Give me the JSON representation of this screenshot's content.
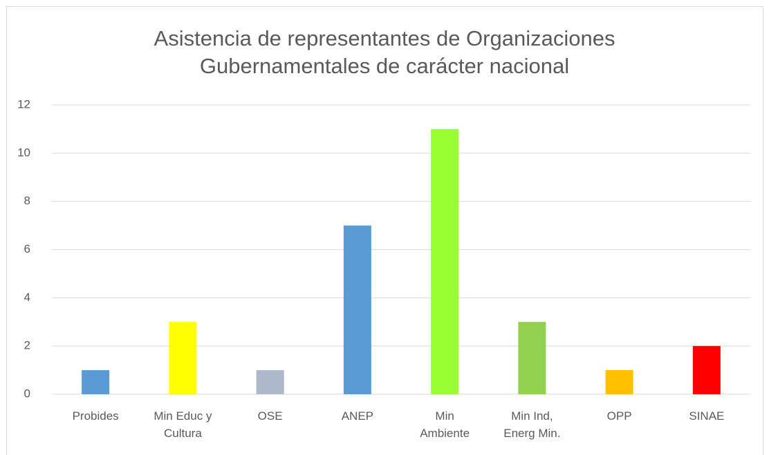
{
  "chart_data": {
    "type": "bar",
    "title": "Asistencia de representantes de Organizaciones Gubernamentales de carácter nacional",
    "categories": [
      "Probides",
      "Min Educ y Cultura",
      "OSE",
      "ANEP",
      "Min Ambiente",
      "Min Ind, Energ Min.",
      "OPP",
      "SINAE"
    ],
    "values": [
      1,
      3,
      1,
      7,
      11,
      3,
      1,
      2
    ],
    "colors": [
      "#5b9bd5",
      "#ffff00",
      "#adb9ca",
      "#5b9bd5",
      "#99ff33",
      "#92d050",
      "#ffc000",
      "#ff0000"
    ],
    "ylim": [
      0,
      12
    ],
    "yticks": [
      0,
      2,
      4,
      6,
      8,
      10,
      12
    ],
    "grid": true
  }
}
